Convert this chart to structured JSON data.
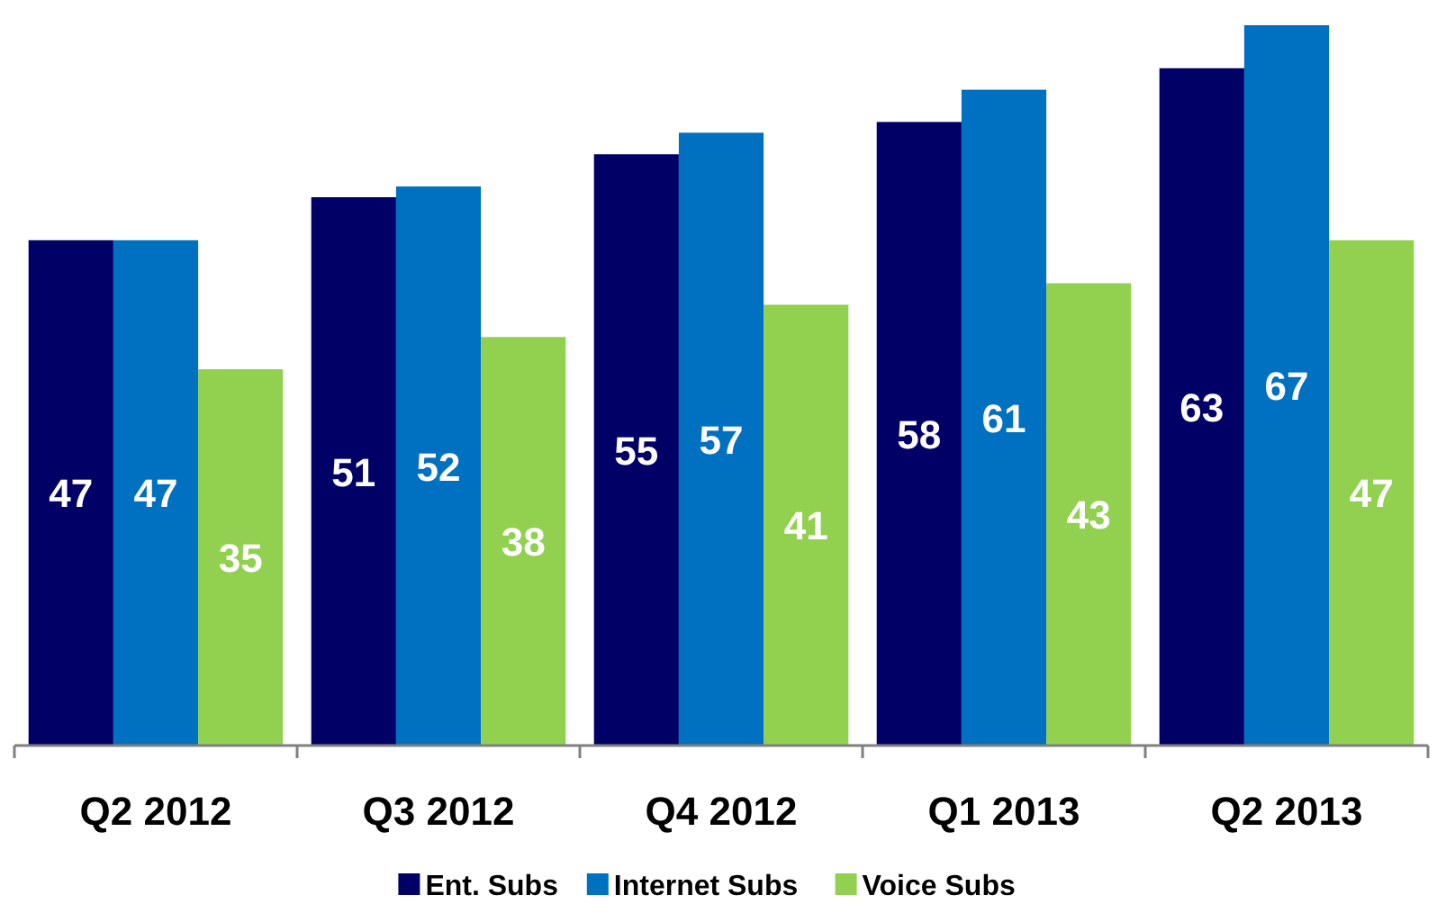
{
  "chart_data": {
    "type": "bar",
    "categories": [
      "Q2 2012",
      "Q3 2012",
      "Q4 2012",
      "Q1 2013",
      "Q2 2013"
    ],
    "series": [
      {
        "name": "Ent. Subs",
        "color": "#000066",
        "values": [
          47,
          51,
          55,
          58,
          63
        ]
      },
      {
        "name": "Internet Subs",
        "color": "#0070c0",
        "values": [
          47,
          52,
          57,
          61,
          67
        ]
      },
      {
        "name": "Voice Subs",
        "color": "#92d050",
        "values": [
          35,
          38,
          41,
          43,
          47
        ]
      }
    ],
    "tick_labels": "x",
    "data_labels": true,
    "legend": "bottom"
  }
}
